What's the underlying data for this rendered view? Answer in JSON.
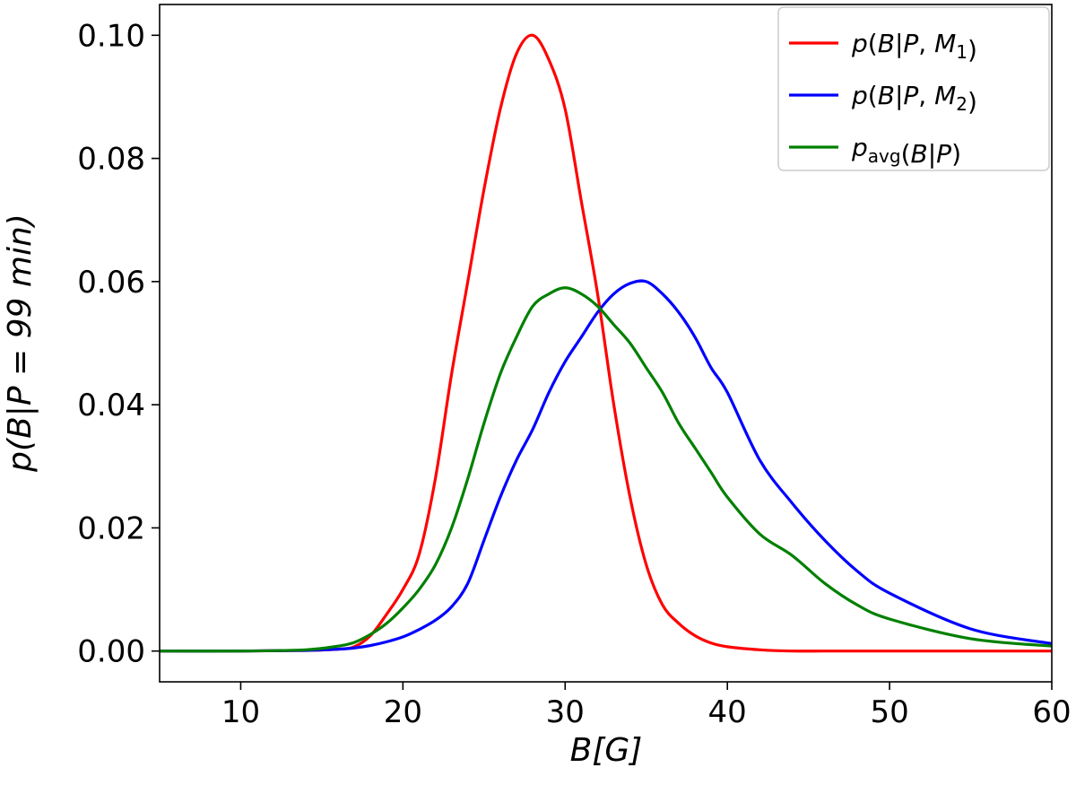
{
  "chart_data": {
    "type": "line",
    "title": "",
    "xlabel": "B[G]",
    "ylabel": "p(B|P = 99 min)",
    "xlim": [
      5,
      60
    ],
    "ylim": [
      -0.005,
      0.105
    ],
    "xticks": [
      10,
      20,
      30,
      40,
      50,
      60
    ],
    "xtick_labels": [
      "10",
      "20",
      "30",
      "40",
      "50",
      "60"
    ],
    "yticks": [
      0.0,
      0.02,
      0.04,
      0.06,
      0.08,
      0.1
    ],
    "ytick_labels": [
      "0.00",
      "0.02",
      "0.04",
      "0.06",
      "0.08",
      "0.10"
    ],
    "grid": false,
    "legend_position": "top-right",
    "x": [
      5,
      10,
      14,
      16,
      17,
      18,
      19,
      20,
      21,
      22,
      23,
      24,
      25,
      26,
      27,
      28,
      29,
      30,
      31,
      32,
      33,
      34,
      35,
      36,
      37,
      38,
      39,
      40,
      42,
      44,
      46,
      48,
      50,
      55,
      60
    ],
    "series": [
      {
        "name": "p(B|P, M_1)",
        "color": "#ff0000",
        "values": [
          0,
          0,
          0.0001,
          0.0003,
          0.0007,
          0.0025,
          0.006,
          0.01,
          0.0157,
          0.028,
          0.045,
          0.06,
          0.075,
          0.088,
          0.097,
          0.1,
          0.096,
          0.088,
          0.073,
          0.058,
          0.04,
          0.025,
          0.014,
          0.0075,
          0.0045,
          0.0025,
          0.0013,
          0.0007,
          0.0002,
          0,
          0,
          0,
          0,
          0,
          0
        ]
      },
      {
        "name": "p(B|P, M_2)",
        "color": "#0000ff",
        "values": [
          0,
          0,
          0.0001,
          0.0003,
          0.0005,
          0.0009,
          0.0015,
          0.0023,
          0.0035,
          0.005,
          0.0072,
          0.011,
          0.018,
          0.025,
          0.031,
          0.036,
          0.042,
          0.047,
          0.051,
          0.055,
          0.058,
          0.0597,
          0.06,
          0.058,
          0.055,
          0.051,
          0.046,
          0.042,
          0.031,
          0.024,
          0.018,
          0.013,
          0.0094,
          0.0036,
          0.0012
        ]
      },
      {
        "name": "p_avg(B|P)",
        "color": "#008000",
        "values": [
          0,
          0,
          0.0002,
          0.0008,
          0.0014,
          0.0027,
          0.0045,
          0.007,
          0.01,
          0.014,
          0.02,
          0.028,
          0.037,
          0.045,
          0.051,
          0.056,
          0.058,
          0.059,
          0.058,
          0.056,
          0.053,
          0.05,
          0.046,
          0.042,
          0.037,
          0.033,
          0.029,
          0.025,
          0.019,
          0.0155,
          0.011,
          0.0075,
          0.0052,
          0.002,
          0.0008
        ]
      }
    ]
  }
}
